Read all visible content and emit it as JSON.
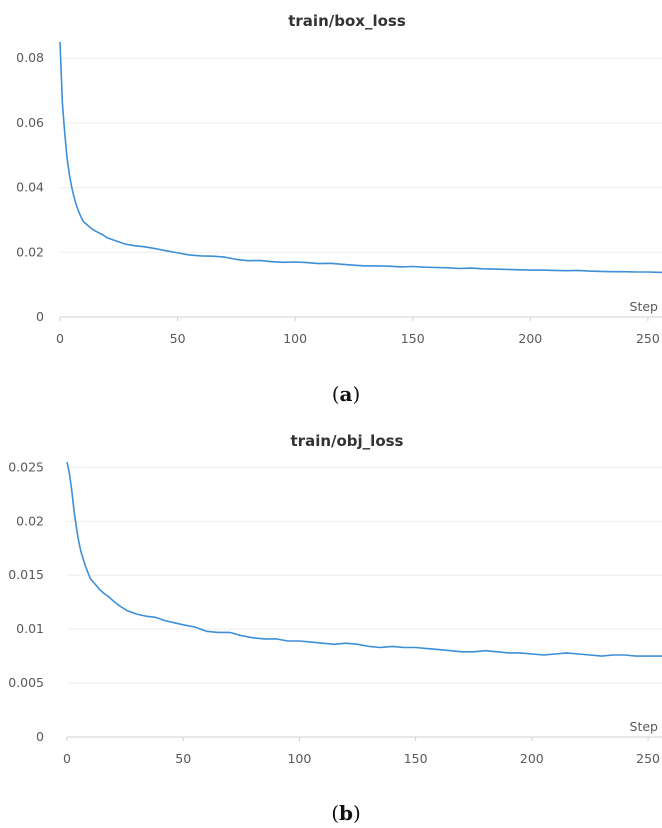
{
  "panels": [
    {
      "caption_open": "(",
      "caption_letter": "a",
      "caption_close": ")"
    },
    {
      "caption_open": "(",
      "caption_letter": "b",
      "caption_close": ")"
    }
  ],
  "chart_data": [
    {
      "type": "line",
      "title": "train/box_loss",
      "xlabel": "Step",
      "ylabel": "",
      "xlim": [
        0,
        256
      ],
      "ylim": [
        0,
        0.085
      ],
      "xticks": [
        0,
        50,
        100,
        150,
        200,
        250
      ],
      "yticks": [
        0,
        0.02,
        0.04,
        0.06,
        0.08
      ],
      "ytick_labels": [
        "0",
        "0.02",
        "0.04",
        "0.06",
        "0.08"
      ],
      "grid": true,
      "color": "#3d8fd7",
      "series": [
        {
          "x": [
            0,
            1,
            2,
            3,
            4,
            5,
            6,
            7,
            8,
            9,
            10,
            12,
            14,
            16,
            18,
            20,
            22,
            25,
            28,
            32,
            36,
            40,
            45,
            50,
            55,
            60,
            65,
            70,
            75,
            80,
            85,
            90,
            95,
            100,
            105,
            110,
            115,
            120,
            125,
            130,
            135,
            140,
            145,
            150,
            155,
            160,
            165,
            170,
            175,
            180,
            185,
            190,
            195,
            200,
            205,
            210,
            215,
            220,
            225,
            230,
            235,
            240,
            245,
            250,
            256
          ],
          "y": [
            0.085,
            0.066,
            0.057,
            0.049,
            0.044,
            0.04,
            0.037,
            0.0345,
            0.0325,
            0.0308,
            0.0295,
            0.0282,
            0.027,
            0.0262,
            0.0255,
            0.0245,
            0.024,
            0.0232,
            0.0225,
            0.022,
            0.0217,
            0.0212,
            0.0205,
            0.0198,
            0.0192,
            0.0189,
            0.0188,
            0.0185,
            0.0178,
            0.0174,
            0.0175,
            0.0171,
            0.0169,
            0.017,
            0.0168,
            0.0165,
            0.0166,
            0.0163,
            0.016,
            0.0158,
            0.0158,
            0.0157,
            0.0155,
            0.0156,
            0.0154,
            0.0153,
            0.0152,
            0.015,
            0.0151,
            0.0149,
            0.0148,
            0.0147,
            0.0146,
            0.0145,
            0.0145,
            0.0144,
            0.0143,
            0.0144,
            0.0142,
            0.0141,
            0.014,
            0.014,
            0.0139,
            0.0139,
            0.0138
          ]
        }
      ]
    },
    {
      "type": "line",
      "title": "train/obj_loss",
      "xlabel": "Step",
      "ylabel": "",
      "xlim": [
        0,
        256
      ],
      "ylim": [
        0,
        0.0255
      ],
      "xticks": [
        0,
        50,
        100,
        150,
        200,
        250
      ],
      "yticks": [
        0,
        0.005,
        0.01,
        0.015,
        0.02,
        0.025
      ],
      "ytick_labels": [
        "0",
        "0.005",
        "0.01",
        "0.015",
        "0.02",
        "0.025"
      ],
      "grid": true,
      "color": "#3d8fd7",
      "series": [
        {
          "x": [
            0,
            1,
            2,
            3,
            4,
            5,
            6,
            7,
            8,
            10,
            12,
            14,
            16,
            18,
            20,
            23,
            26,
            30,
            34,
            38,
            42,
            46,
            50,
            55,
            60,
            65,
            70,
            75,
            80,
            85,
            90,
            95,
            100,
            105,
            110,
            115,
            120,
            125,
            130,
            135,
            140,
            145,
            150,
            155,
            160,
            165,
            170,
            175,
            180,
            185,
            190,
            195,
            200,
            205,
            210,
            215,
            220,
            225,
            230,
            235,
            240,
            245,
            250,
            256
          ],
          "y": [
            0.0255,
            0.0245,
            0.023,
            0.021,
            0.0195,
            0.0182,
            0.0172,
            0.0165,
            0.0158,
            0.0147,
            0.0142,
            0.0137,
            0.0133,
            0.013,
            0.0126,
            0.0121,
            0.0117,
            0.0114,
            0.0112,
            0.0111,
            0.0108,
            0.0106,
            0.0104,
            0.0102,
            0.0098,
            0.0097,
            0.0097,
            0.0094,
            0.0092,
            0.0091,
            0.0091,
            0.0089,
            0.0089,
            0.0088,
            0.0087,
            0.0086,
            0.0087,
            0.0086,
            0.0084,
            0.0083,
            0.0084,
            0.0083,
            0.0083,
            0.0082,
            0.0081,
            0.008,
            0.0079,
            0.0079,
            0.008,
            0.0079,
            0.0078,
            0.0078,
            0.0077,
            0.0076,
            0.0077,
            0.0078,
            0.0077,
            0.0076,
            0.0075,
            0.0076,
            0.0076,
            0.0075,
            0.0075,
            0.0075
          ]
        }
      ]
    }
  ]
}
